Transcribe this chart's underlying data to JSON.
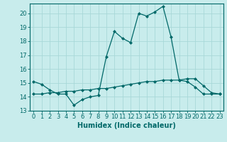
{
  "title": "",
  "xlabel": "Humidex (Indice chaleur)",
  "ylabel": "",
  "bg_color": "#c8ecec",
  "grid_color": "#a8d8d8",
  "line_color": "#006868",
  "xlim": [
    -0.5,
    23.5
  ],
  "ylim": [
    13.0,
    20.7
  ],
  "yticks": [
    13,
    14,
    15,
    16,
    17,
    18,
    19,
    20
  ],
  "xticks": [
    0,
    1,
    2,
    3,
    4,
    5,
    6,
    7,
    8,
    9,
    10,
    11,
    12,
    13,
    14,
    15,
    16,
    17,
    18,
    19,
    20,
    21,
    22,
    23
  ],
  "series1_x": [
    0,
    1,
    2,
    3,
    4,
    5,
    6,
    7,
    8,
    9,
    10,
    11,
    12,
    13,
    14,
    15,
    16,
    17,
    18,
    19,
    20,
    21,
    22,
    23
  ],
  "series1_y": [
    15.1,
    14.9,
    14.5,
    14.2,
    14.2,
    13.4,
    13.8,
    14.0,
    14.1,
    16.9,
    18.7,
    18.2,
    17.9,
    20.0,
    19.8,
    20.1,
    20.5,
    18.3,
    15.2,
    15.1,
    14.7,
    14.2,
    14.2,
    14.2
  ],
  "series2_x": [
    0,
    1,
    2,
    3,
    4,
    5,
    6,
    7,
    8,
    9,
    10,
    11,
    12,
    13,
    14,
    15,
    16,
    17,
    18,
    19,
    20,
    21,
    22,
    23
  ],
  "series2_y": [
    14.2,
    14.2,
    14.3,
    14.3,
    14.4,
    14.4,
    14.5,
    14.5,
    14.6,
    14.6,
    14.7,
    14.8,
    14.9,
    15.0,
    15.1,
    15.1,
    15.2,
    15.2,
    15.2,
    15.3,
    15.3,
    14.8,
    14.3,
    14.2
  ],
  "tick_fontsize": 6.0,
  "xlabel_fontsize": 7.0,
  "marker_size": 2.5
}
